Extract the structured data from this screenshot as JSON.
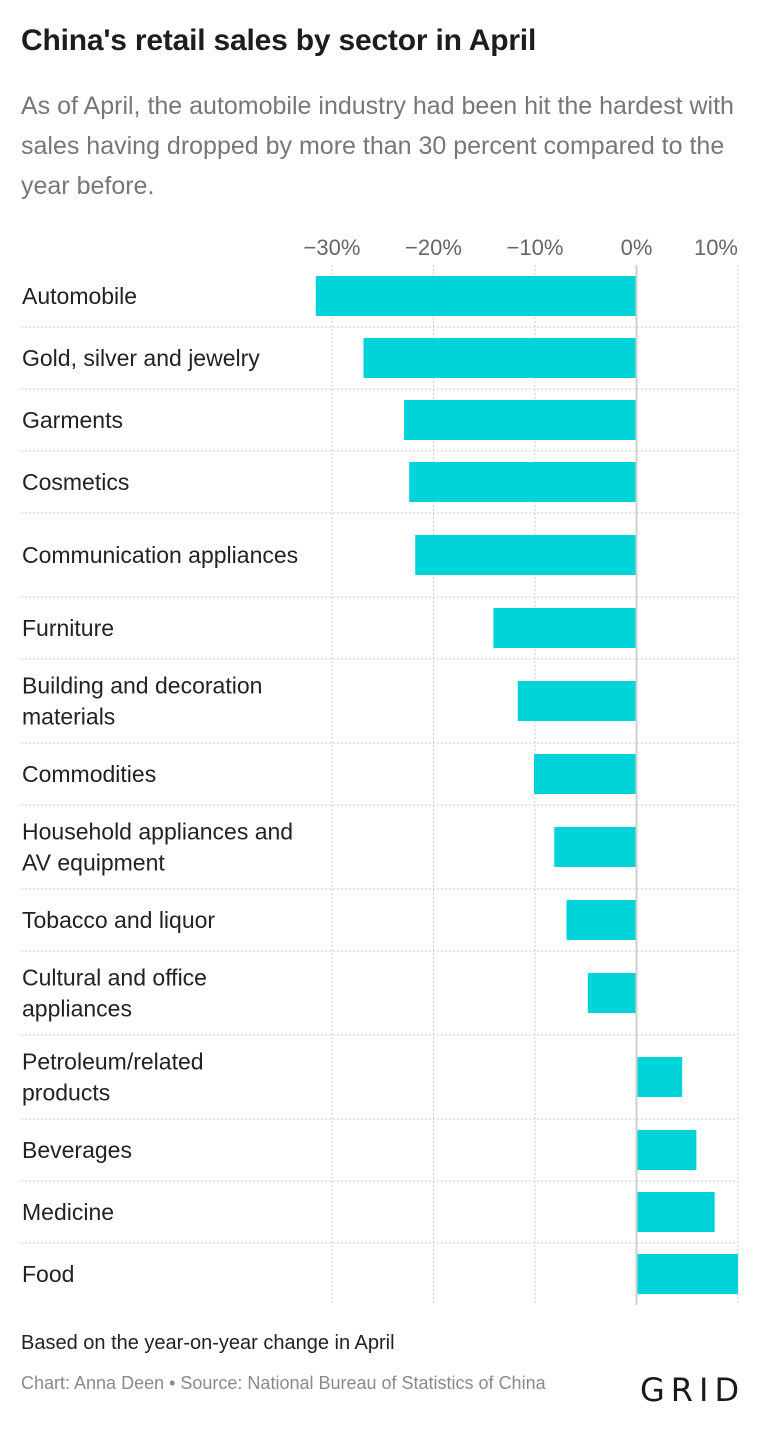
{
  "title": "China's retail sales by sector in April",
  "subtitle": "As of April, the automobile industry had been hit the hardest with sales having dropped by more than 30 percent compared to the year before.",
  "notes": "Based on the year-on-year change in April",
  "credit": "Chart: Anna Deen • Source: National Bureau of Statistics of China",
  "logo": "GRID",
  "colors": {
    "bar": "#00d4d8",
    "grid": "#cccccc",
    "zero_line": "#cfcfcf",
    "label": "#222222",
    "tick": "#666666"
  },
  "chart_data": {
    "type": "bar",
    "orientation": "horizontal",
    "xlim": [
      -30,
      10
    ],
    "x_ticks": [
      -30,
      -20,
      -10,
      0,
      10
    ],
    "x_tick_labels": [
      "−30%",
      "−20%",
      "−10%",
      "0%",
      "10%"
    ],
    "categories": [
      "Automobile",
      "Gold, silver and jewelry",
      "Garments",
      "Cosmetics",
      "Communication appliances",
      "Furniture",
      "Building and decoration materials",
      "Commodities",
      "Household appliances and AV equipment",
      "Tobacco and liquor",
      "Cultural and office appliances",
      "Petroleum/related products",
      "Beverages",
      "Medicine",
      "Food"
    ],
    "values": [
      -31.6,
      -26.9,
      -22.9,
      -22.4,
      -21.8,
      -14.1,
      -11.7,
      -10.1,
      -8.1,
      -6.9,
      -4.8,
      4.5,
      5.9,
      7.7,
      10.0
    ],
    "grid": true
  }
}
